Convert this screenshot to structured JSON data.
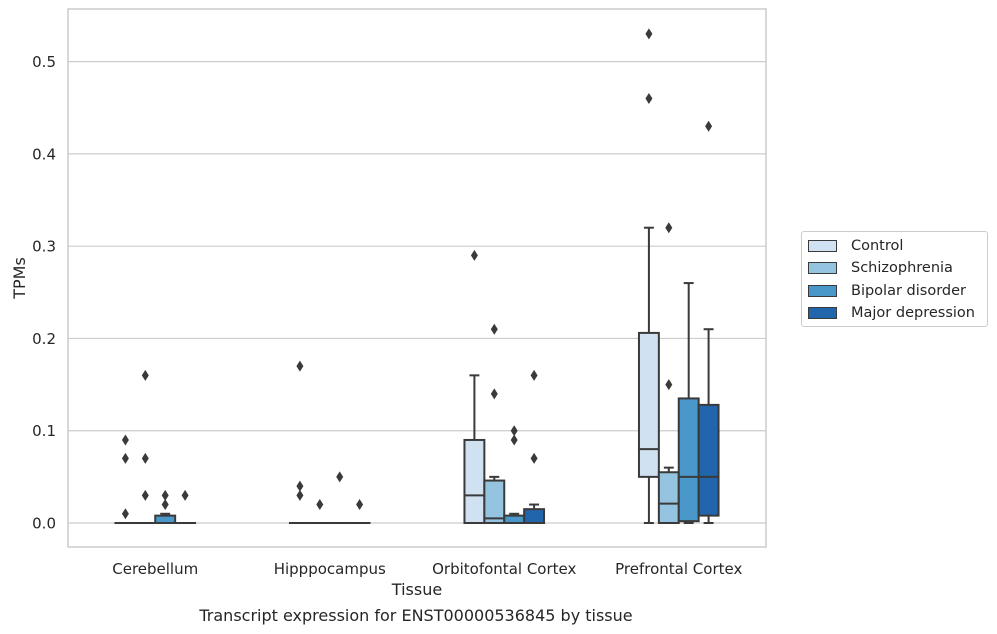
{
  "chart_data": {
    "type": "box",
    "xlabel": "Tissue",
    "ylabel": "TPMs",
    "ylim": [
      -0.026,
      0.557
    ],
    "yticks": [
      0.0,
      0.1,
      0.2,
      0.3,
      0.4,
      0.5
    ],
    "ytick_labels": [
      "0.0",
      "0.1",
      "0.2",
      "0.3",
      "0.4",
      "0.5"
    ],
    "grid": "horizontal",
    "legend_position": "right",
    "categories": [
      "Cerebellum",
      "Hipppocampus",
      "Orbitofontal Cortex",
      "Prefrontal Cortex"
    ],
    "series": [
      {
        "name": "Control",
        "color": "#d0e1f2",
        "boxes": [
          {
            "q1": 0.0,
            "median": 0.0,
            "q3": 0.0,
            "whisker_low": 0.0,
            "whisker_high": 0.0,
            "outliers": [
              0.01,
              0.07,
              0.09
            ]
          },
          {
            "q1": 0.0,
            "median": 0.0,
            "q3": 0.0,
            "whisker_low": 0.0,
            "whisker_high": 0.0,
            "outliers": [
              0.03,
              0.04,
              0.17
            ]
          },
          {
            "q1": 0.0,
            "median": 0.03,
            "q3": 0.09,
            "whisker_low": 0.0,
            "whisker_high": 0.16,
            "outliers": [
              0.29
            ]
          },
          {
            "q1": 0.05,
            "median": 0.08,
            "q3": 0.206,
            "whisker_low": 0.0,
            "whisker_high": 0.32,
            "outliers": [
              0.46,
              0.53
            ]
          }
        ]
      },
      {
        "name": "Schizophrenia",
        "color": "#94c4df",
        "boxes": [
          {
            "q1": 0.0,
            "median": 0.0,
            "q3": 0.0,
            "whisker_low": 0.0,
            "whisker_high": 0.0,
            "outliers": [
              0.03,
              0.07,
              0.16
            ]
          },
          {
            "q1": 0.0,
            "median": 0.0,
            "q3": 0.0,
            "whisker_low": 0.0,
            "whisker_high": 0.0,
            "outliers": [
              0.02
            ]
          },
          {
            "q1": 0.0,
            "median": 0.005,
            "q3": 0.046,
            "whisker_low": 0.0,
            "whisker_high": 0.05,
            "outliers": [
              0.14,
              0.21
            ]
          },
          {
            "q1": 0.0,
            "median": 0.021,
            "q3": 0.055,
            "whisker_low": 0.0,
            "whisker_high": 0.06,
            "outliers": [
              0.15,
              0.32
            ]
          }
        ]
      },
      {
        "name": "Bipolar disorder",
        "color": "#4a98c9",
        "boxes": [
          {
            "q1": 0.0,
            "median": 0.0,
            "q3": 0.008,
            "whisker_low": 0.0,
            "whisker_high": 0.01,
            "outliers": [
              0.02,
              0.03
            ]
          },
          {
            "q1": 0.0,
            "median": 0.0,
            "q3": 0.0,
            "whisker_low": 0.0,
            "whisker_high": 0.0,
            "outliers": [
              0.05
            ]
          },
          {
            "q1": 0.0,
            "median": 0.0,
            "q3": 0.008,
            "whisker_low": 0.0,
            "whisker_high": 0.01,
            "outliers": [
              0.09,
              0.1
            ]
          },
          {
            "q1": 0.002,
            "median": 0.05,
            "q3": 0.135,
            "whisker_low": 0.0,
            "whisker_high": 0.26,
            "outliers": []
          }
        ]
      },
      {
        "name": "Major depression",
        "color": "#2166ac",
        "boxes": [
          {
            "q1": 0.0,
            "median": 0.0,
            "q3": 0.0,
            "whisker_low": 0.0,
            "whisker_high": 0.0,
            "outliers": [
              0.03
            ]
          },
          {
            "q1": 0.0,
            "median": 0.0,
            "q3": 0.0,
            "whisker_low": 0.0,
            "whisker_high": 0.0,
            "outliers": [
              0.02
            ]
          },
          {
            "q1": 0.0,
            "median": 0.0,
            "q3": 0.015,
            "whisker_low": 0.0,
            "whisker_high": 0.02,
            "outliers": [
              0.07,
              0.16
            ]
          },
          {
            "q1": 0.008,
            "median": 0.05,
            "q3": 0.128,
            "whisker_low": 0.0,
            "whisker_high": 0.21,
            "outliers": [
              0.43
            ]
          }
        ]
      }
    ]
  },
  "caption": "Transcript expression for ENST00000536845 by tissue"
}
